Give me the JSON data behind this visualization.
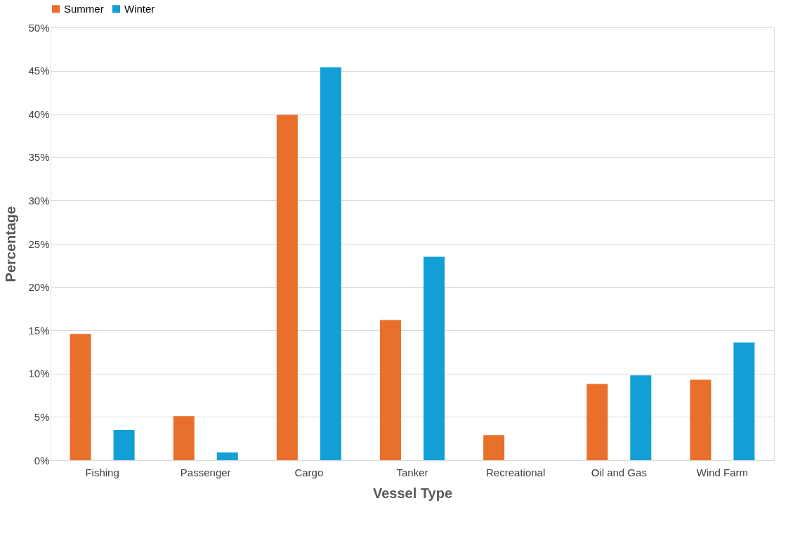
{
  "chart_data": {
    "type": "bar",
    "xlabel": "Vessel Type",
    "ylabel": "Percentage",
    "categories": [
      "Fishing",
      "Passenger",
      "Cargo",
      "Tanker",
      "Recreational",
      "Oil and Gas",
      "Wind Farm"
    ],
    "series": [
      {
        "name": "Summer",
        "color": "#e8702a",
        "values": [
          14.6,
          5.1,
          39.9,
          16.2,
          2.9,
          8.8,
          9.3
        ]
      },
      {
        "name": "Winter",
        "color": "#129fd6",
        "values": [
          3.5,
          0.9,
          45.4,
          23.5,
          0,
          9.8,
          13.6
        ]
      }
    ],
    "ylim": [
      0,
      50
    ],
    "yticks": [
      {
        "value": 0,
        "label": "0%"
      },
      {
        "value": 5,
        "label": "5%"
      },
      {
        "value": 10,
        "label": "10%"
      },
      {
        "value": 15,
        "label": "15%"
      },
      {
        "value": 20,
        "label": "20%"
      },
      {
        "value": 25,
        "label": "25%"
      },
      {
        "value": 30,
        "label": "30%"
      },
      {
        "value": 35,
        "label": "35%"
      },
      {
        "value": 40,
        "label": "40%"
      },
      {
        "value": 45,
        "label": "45%"
      },
      {
        "value": 50,
        "label": "50%"
      }
    ],
    "grid": "y",
    "legend": "top"
  }
}
